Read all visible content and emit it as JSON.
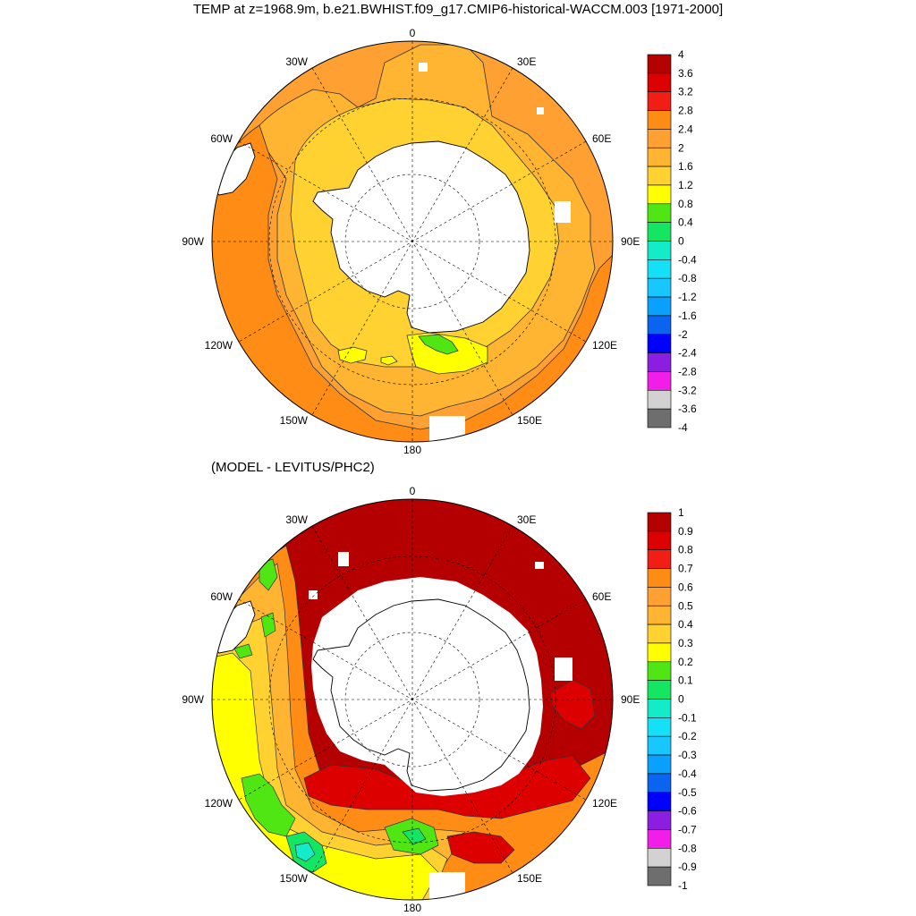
{
  "title": "TEMP at z=1968.9m, b.e21.BWHIST.f09_g17.CMIP6-historical-WACCM.003 [1971-2000]",
  "subtitle": "(MODEL - LEVITUS/PHC2)",
  "longitude_labels": [
    "0",
    "30E",
    "60E",
    "90E",
    "120E",
    "150E",
    "180",
    "150W",
    "120W",
    "90W",
    "60W",
    "30W"
  ],
  "colors": {
    "palette": [
      "#6e6e6e",
      "#d2d2d2",
      "#f01ee6",
      "#8c1ee1",
      "#0000ff",
      "#0a64f0",
      "#0aa0ff",
      "#16c8ff",
      "#14e1f5",
      "#14ebc8",
      "#14e664",
      "#50e614",
      "#ffff00",
      "#ffd232",
      "#ffb432",
      "#ffa032",
      "#ff8c14",
      "#f01e14",
      "#dc0000",
      "#b40000"
    ],
    "land": "#ffffff",
    "outline": "#000000"
  },
  "maps": [
    {
      "id": "top",
      "colorbar_labels": [
        "4",
        "3.6",
        "3.2",
        "2.8",
        "2.4",
        "2",
        "1.6",
        "1.2",
        "0.8",
        "0.4",
        "0",
        "-0.4",
        "-0.8",
        "-1.2",
        "-1.6",
        "-2",
        "-2.4",
        "-2.8",
        "-3.2",
        "-3.6",
        "-4"
      ]
    },
    {
      "id": "bottom",
      "colorbar_labels": [
        "1",
        "0.9",
        "0.8",
        "0.7",
        "0.6",
        "0.5",
        "0.4",
        "0.3",
        "0.2",
        "0.1",
        "0",
        "-0.1",
        "-0.2",
        "-0.3",
        "-0.4",
        "-0.5",
        "-0.6",
        "-0.7",
        "-0.8",
        "-0.9",
        "-1"
      ]
    }
  ]
}
